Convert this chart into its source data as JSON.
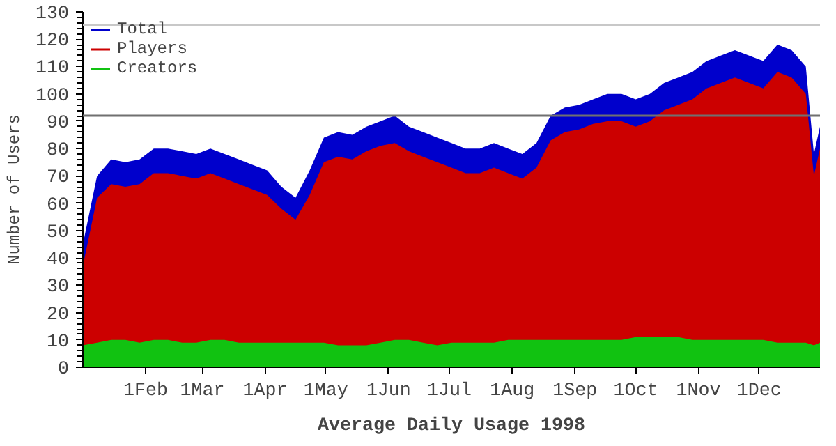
{
  "chart_data": {
    "type": "area",
    "title": "Average Daily Usage 1998",
    "ylabel": "Number of Users",
    "x": [
      "1998-01-01",
      "1998-01-08",
      "1998-01-15",
      "1998-01-22",
      "1998-01-29",
      "1998-02-05",
      "1998-02-12",
      "1998-02-19",
      "1998-02-26",
      "1998-03-05",
      "1998-03-12",
      "1998-03-19",
      "1998-03-26",
      "1998-04-02",
      "1998-04-09",
      "1998-04-16",
      "1998-04-23",
      "1998-04-30",
      "1998-05-07",
      "1998-05-14",
      "1998-05-21",
      "1998-05-28",
      "1998-06-04",
      "1998-06-11",
      "1998-06-18",
      "1998-06-25",
      "1998-07-02",
      "1998-07-09",
      "1998-07-16",
      "1998-07-23",
      "1998-07-30",
      "1998-08-06",
      "1998-08-13",
      "1998-08-20",
      "1998-08-27",
      "1998-09-03",
      "1998-09-10",
      "1998-09-17",
      "1998-09-24",
      "1998-10-01",
      "1998-10-08",
      "1998-10-15",
      "1998-10-22",
      "1998-10-29",
      "1998-11-05",
      "1998-11-12",
      "1998-11-19",
      "1998-11-26",
      "1998-12-03",
      "1998-12-10",
      "1998-12-17",
      "1998-12-24",
      "1998-12-28",
      "1998-12-31"
    ],
    "series": [
      {
        "name": "Total",
        "color": "#0000cc",
        "values": [
          45,
          70,
          76,
          75,
          76,
          80,
          80,
          79,
          78,
          80,
          78,
          76,
          74,
          72,
          66,
          62,
          72,
          84,
          86,
          85,
          88,
          90,
          92,
          88,
          86,
          84,
          82,
          80,
          80,
          82,
          80,
          78,
          82,
          92,
          95,
          96,
          98,
          100,
          100,
          98,
          100,
          104,
          106,
          108,
          112,
          114,
          116,
          114,
          112,
          118,
          116,
          110,
          78,
          88
        ]
      },
      {
        "name": "Players",
        "color": "#cc0000",
        "values": [
          37,
          62,
          67,
          66,
          67,
          71,
          71,
          70,
          69,
          71,
          69,
          67,
          65,
          63,
          58,
          54,
          63,
          75,
          77,
          76,
          79,
          81,
          82,
          79,
          77,
          75,
          73,
          71,
          71,
          73,
          71,
          69,
          73,
          83,
          86,
          87,
          89,
          90,
          90,
          88,
          90,
          94,
          96,
          98,
          102,
          104,
          106,
          104,
          102,
          108,
          106,
          100,
          70,
          80
        ]
      },
      {
        "name": "Creators",
        "color": "#11c211",
        "values": [
          8,
          9,
          10,
          10,
          9,
          10,
          10,
          9,
          9,
          10,
          10,
          9,
          9,
          9,
          9,
          9,
          9,
          9,
          8,
          8,
          8,
          9,
          10,
          10,
          9,
          8,
          9,
          9,
          9,
          9,
          10,
          10,
          10,
          10,
          10,
          10,
          10,
          10,
          10,
          11,
          11,
          11,
          11,
          10,
          10,
          10,
          10,
          10,
          10,
          9,
          9,
          9,
          8,
          9
        ]
      }
    ],
    "xlim": [
      "1998-01-01",
      "1998-12-31"
    ],
    "xticks": [
      {
        "value": "1998-02-01",
        "label": "1Feb"
      },
      {
        "value": "1998-03-01",
        "label": "1Mar"
      },
      {
        "value": "1998-04-01",
        "label": "1Apr"
      },
      {
        "value": "1998-05-01",
        "label": "1May"
      },
      {
        "value": "1998-06-01",
        "label": "1Jun"
      },
      {
        "value": "1998-07-01",
        "label": "1Jul"
      },
      {
        "value": "1998-08-01",
        "label": "1Aug"
      },
      {
        "value": "1998-09-01",
        "label": "1Sep"
      },
      {
        "value": "1998-10-01",
        "label": "1Oct"
      },
      {
        "value": "1998-11-01",
        "label": "1Nov"
      },
      {
        "value": "1998-12-01",
        "label": "1Dec"
      }
    ],
    "ylim": [
      0,
      130
    ],
    "yticks": [
      0,
      10,
      20,
      30,
      40,
      50,
      60,
      70,
      80,
      90,
      100,
      110,
      120,
      130
    ],
    "ref_lines": [
      {
        "axis": "y",
        "value": 125,
        "color": "#c8c8c8"
      },
      {
        "axis": "y",
        "value": 92,
        "color": "#707070"
      }
    ],
    "legend": "top left",
    "grid": false
  }
}
